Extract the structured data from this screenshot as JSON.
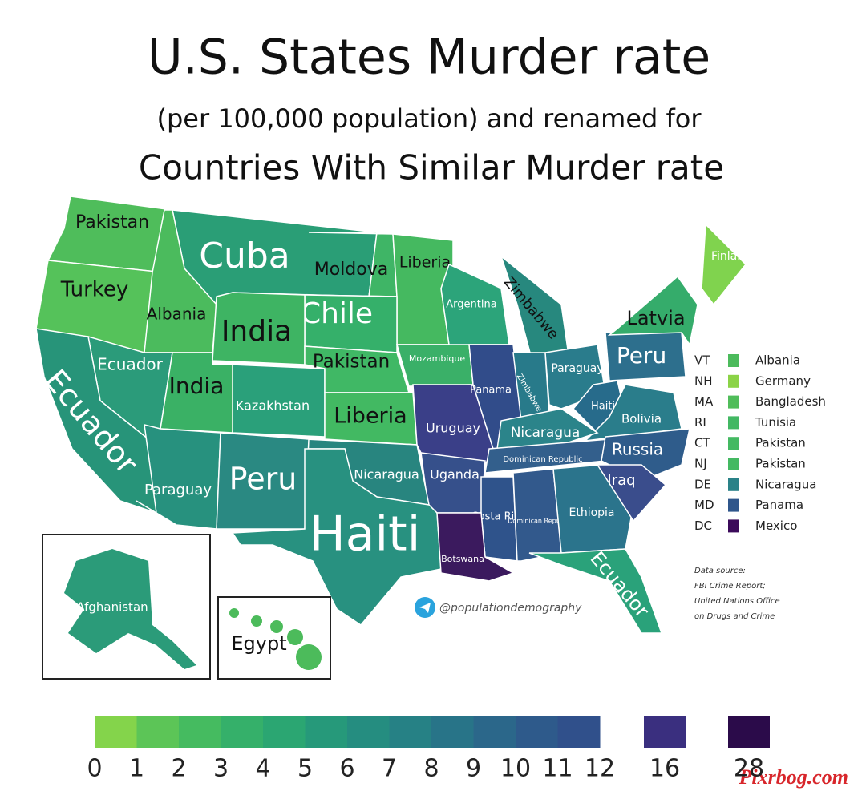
{
  "title": "U.S. States Murder rate",
  "subtitle": "(per 100,000 population) and renamed for",
  "subtitle2": "Countries With Similar Murder rate",
  "states": [
    {
      "label": "Pakistan",
      "color": "#4fbd5b"
    },
    {
      "label": "Turkey",
      "color": "#55c25a"
    },
    {
      "label": "Cuba",
      "color": "#2a9e76"
    },
    {
      "label": "Albania",
      "color": "#4bbb5d"
    },
    {
      "label": "Moldova",
      "color": "#3fb566"
    },
    {
      "label": "Liberia",
      "color": "#45b960"
    },
    {
      "label": "Chile",
      "color": "#35b06a"
    },
    {
      "label": "India",
      "color": "#3eb463"
    },
    {
      "label": "Ecuador",
      "color": "#2b9b7a"
    },
    {
      "label": "Ecuador",
      "color": "#279479"
    },
    {
      "label": "India",
      "color": "#3ab165"
    },
    {
      "label": "Kazakhstan",
      "color": "#2aa07a"
    },
    {
      "label": "Pakistan",
      "color": "#40b865"
    },
    {
      "label": "Liberia",
      "color": "#42b962"
    },
    {
      "label": "Mozambique",
      "color": "#3ab068"
    },
    {
      "label": "Argentina",
      "color": "#2ca47a"
    },
    {
      "label": "Zimbabwe",
      "color": "#27887e"
    },
    {
      "label": "Uruguay",
      "color": "#3a3f88"
    },
    {
      "label": "Panama",
      "color": "#314c8a"
    },
    {
      "label": "Zimbabwe",
      "color": "#287a8a"
    },
    {
      "label": "Paraguay",
      "color": "#2a7c8c"
    },
    {
      "label": "Peru",
      "color": "#2d6f8d"
    },
    {
      "label": "Haiti",
      "color": "#276b8b"
    },
    {
      "label": "Bolivia",
      "color": "#2a7d8b"
    },
    {
      "label": "Nicaragua",
      "color": "#2b848a"
    },
    {
      "label": "Dominican Republic",
      "color": "#335f8c"
    },
    {
      "label": "Russia",
      "color": "#2f5c8b"
    },
    {
      "label": "Uganda",
      "color": "#36508b"
    },
    {
      "label": "Nicaragua",
      "color": "#28857f"
    },
    {
      "label": "Paraguay",
      "color": "#27917e"
    },
    {
      "label": "Peru",
      "color": "#2a8982"
    },
    {
      "label": "Haiti",
      "color": "#289180"
    },
    {
      "label": "Costa Rica",
      "color": "#2f538b"
    },
    {
      "label": "Dominican Republic",
      "color": "#32598c"
    },
    {
      "label": "Ethiopia",
      "color": "#2b748c"
    },
    {
      "label": "Iraq",
      "color": "#3a4d8c"
    },
    {
      "label": "Botswana",
      "color": "#3b1a5e"
    },
    {
      "label": "Ecuador",
      "color": "#2aa27a"
    },
    {
      "label": "Latvia",
      "color": "#35ac6b"
    },
    {
      "label": "Finland",
      "color": "#80d34e"
    }
  ],
  "insets": [
    {
      "label": "Afghanistan",
      "color": "#2b9b79"
    },
    {
      "label": "Egypt",
      "color": "#4cbb5b"
    }
  ],
  "small_states": [
    {
      "state": "VT",
      "country": "Albania",
      "color": "#4cbb5c"
    },
    {
      "state": "NH",
      "country": "Germany",
      "color": "#8bd347"
    },
    {
      "state": "MA",
      "country": "Bangladesh",
      "color": "#50bd5a"
    },
    {
      "state": "RI",
      "country": "Tunisia",
      "color": "#42b863"
    },
    {
      "state": "CT",
      "country": "Pakistan",
      "color": "#44b962"
    },
    {
      "state": "NJ",
      "country": "Pakistan",
      "color": "#44b962"
    },
    {
      "state": "DE",
      "country": "Nicaragua",
      "color": "#2a8288"
    },
    {
      "state": "MD",
      "country": "Panama",
      "color": "#2f568b"
    },
    {
      "state": "DC",
      "country": "Mexico",
      "color": "#3b0a5a"
    }
  ],
  "scale": {
    "ticks": [
      0,
      1,
      2,
      3,
      4,
      5,
      6,
      7,
      8,
      9,
      10,
      11,
      12,
      16,
      28
    ],
    "colors": [
      "#84d44b",
      "#5cc557",
      "#45bb60",
      "#35b06a",
      "#2ba672",
      "#26997a",
      "#258d80",
      "#268185",
      "#287488",
      "#2b678a",
      "#2e5a8b",
      "#30508b",
      "#3a2f7f",
      "#2b0b4a"
    ]
  },
  "source": [
    "Data source:",
    "FBI Crime Report;",
    "United Nations Office",
    "on Drugs and Crime"
  ],
  "credit": "@populationdemography",
  "watermark": "Pixrbog.com"
}
